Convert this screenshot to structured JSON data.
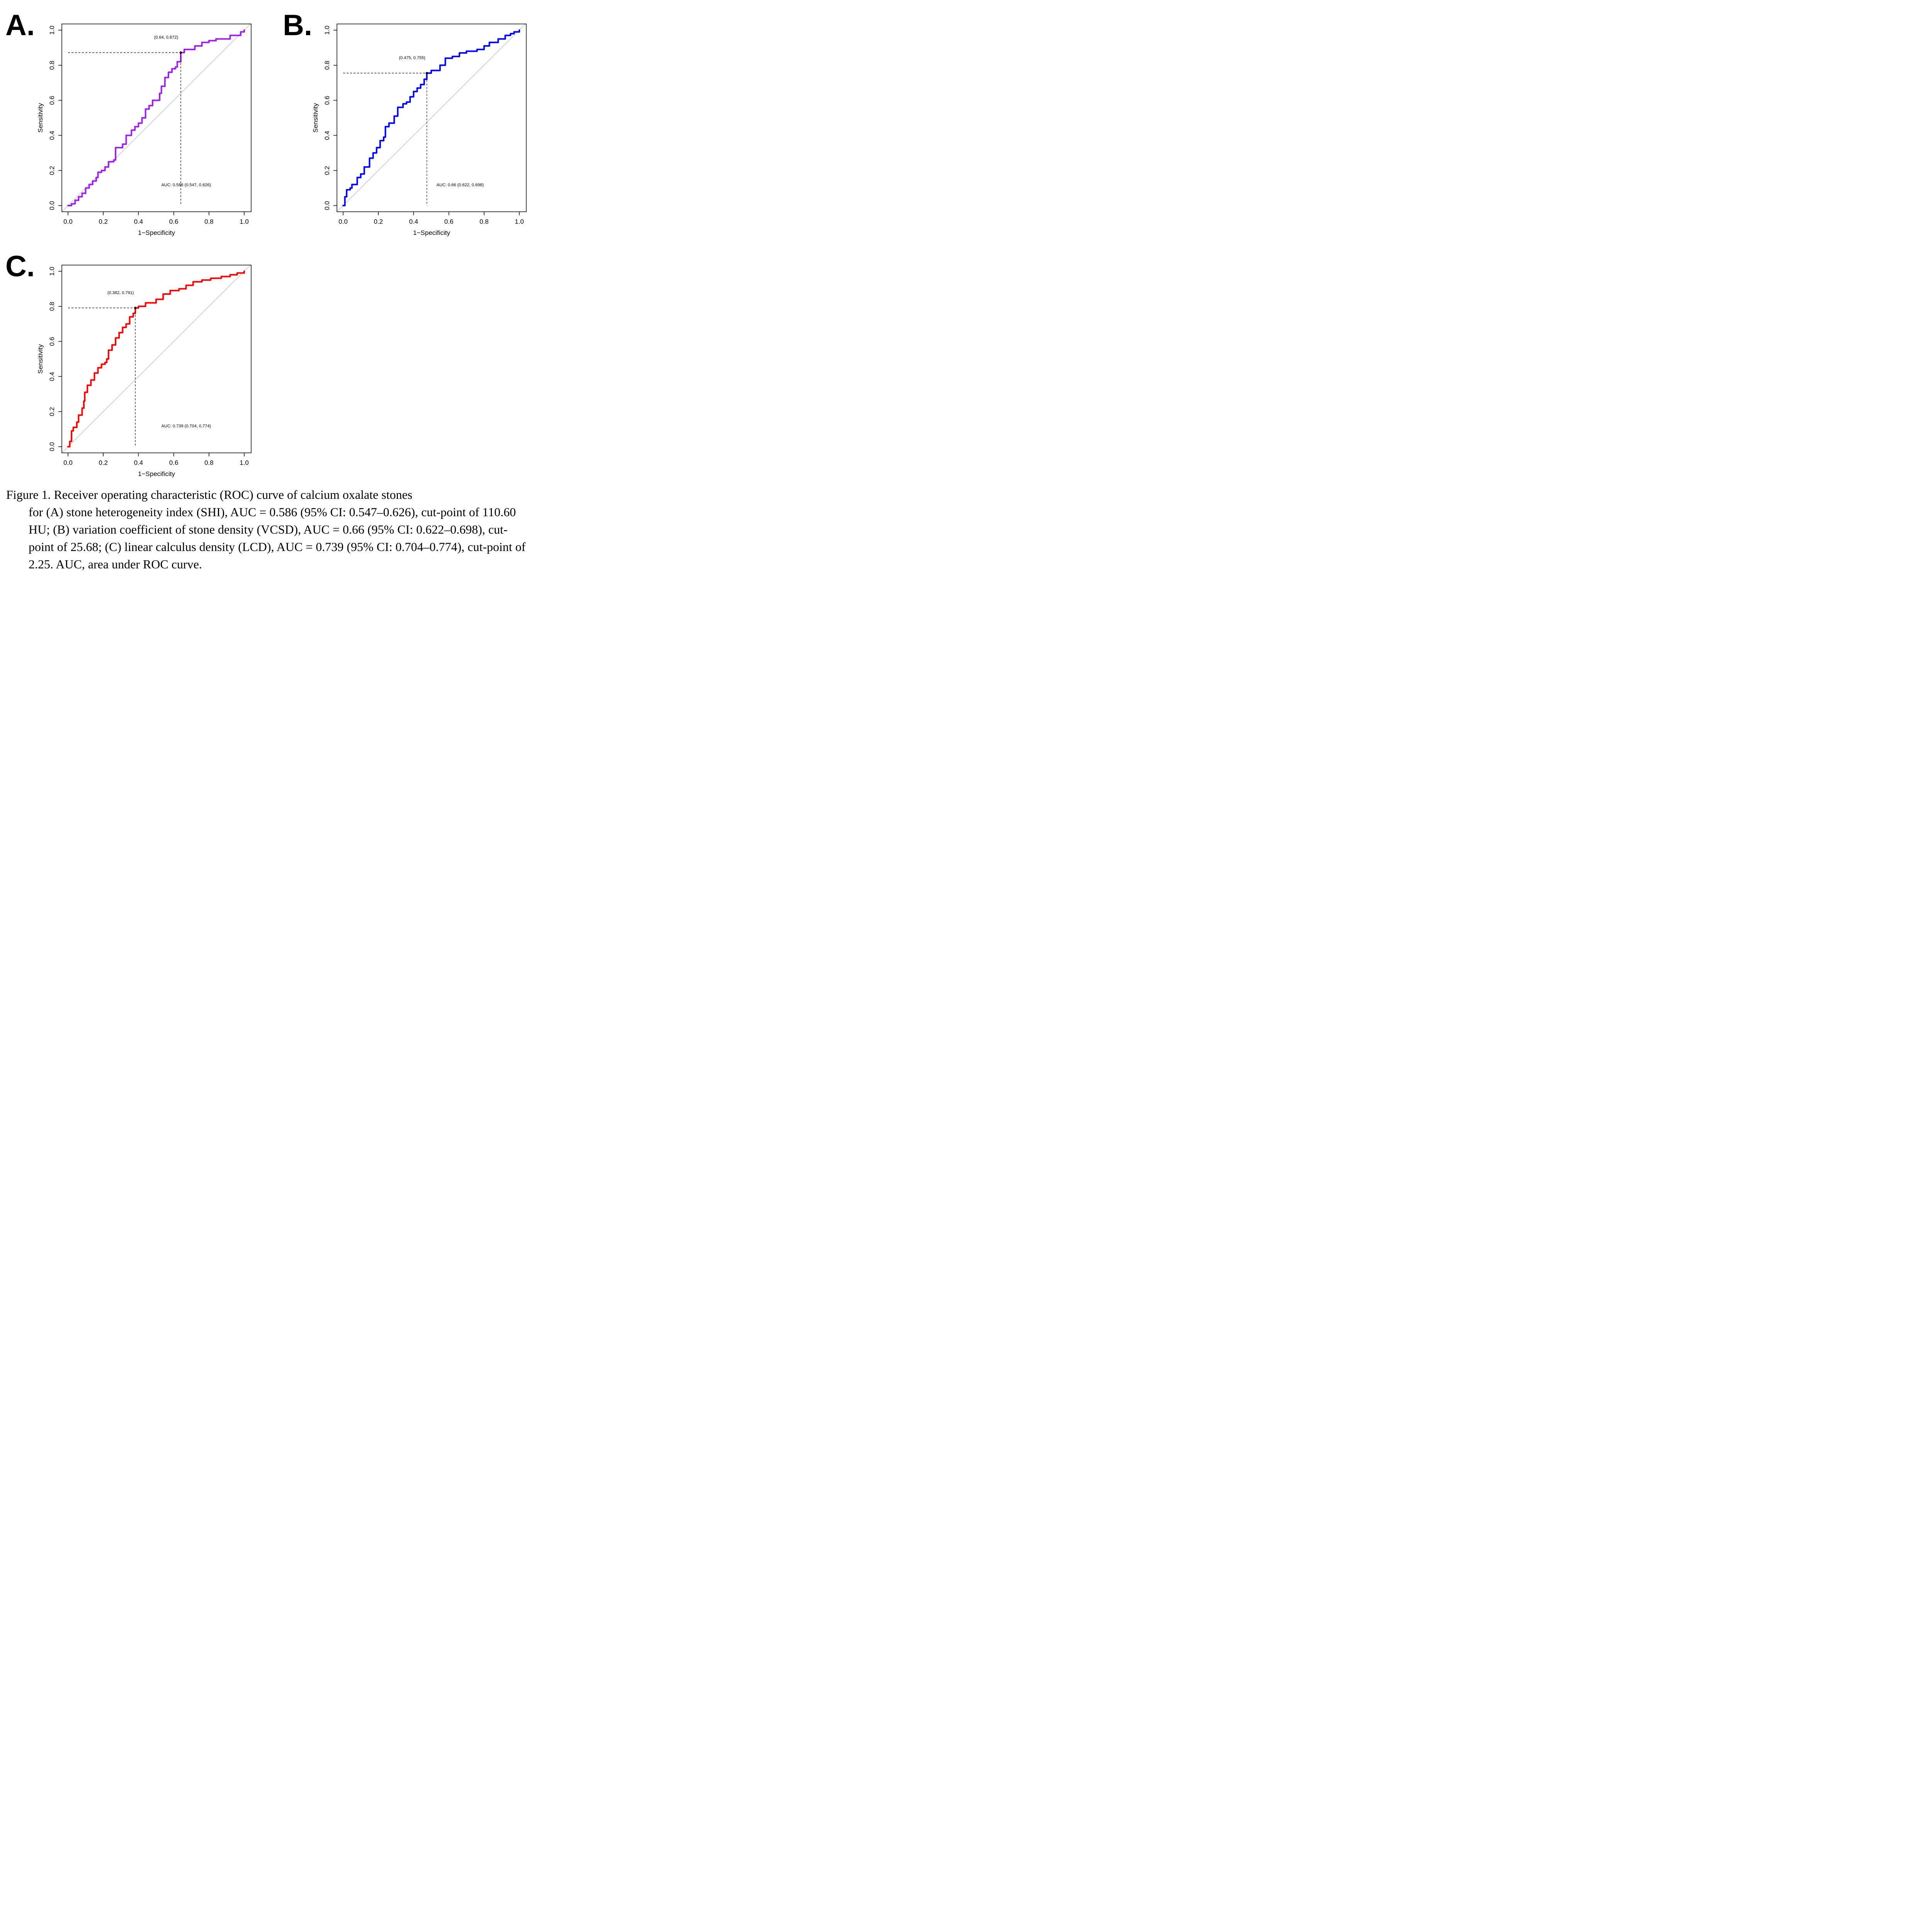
{
  "chart_data": [
    {
      "type": "line",
      "panel_label": "A.",
      "title": "",
      "xlabel": "1−Specificity",
      "ylabel": "Sensitivity",
      "xlim": [
        0,
        1
      ],
      "ylim": [
        0,
        1
      ],
      "xticks": [
        "0.0",
        "0.2",
        "0.4",
        "0.6",
        "0.8",
        "1.0"
      ],
      "yticks": [
        "0.0",
        "0.2",
        "0.4",
        "0.6",
        "0.8",
        "1.0"
      ],
      "curve_color": "#a020f0",
      "reference_line_color": "#bebebe",
      "cutpoint": {
        "x": 0.64,
        "y": 0.872,
        "label": "(0.64, 0.872)"
      },
      "auc_label": "AUC: 0.586 (0.547, 0.626)",
      "series": [
        {
          "name": "SHI",
          "x": [
            0.0,
            0.02,
            0.04,
            0.06,
            0.08,
            0.1,
            0.12,
            0.14,
            0.16,
            0.17,
            0.19,
            0.21,
            0.23,
            0.26,
            0.27,
            0.3,
            0.31,
            0.33,
            0.34,
            0.36,
            0.38,
            0.4,
            0.42,
            0.44,
            0.46,
            0.48,
            0.49,
            0.52,
            0.53,
            0.55,
            0.57,
            0.59,
            0.61,
            0.62,
            0.64,
            0.66,
            0.7,
            0.72,
            0.76,
            0.8,
            0.84,
            0.89,
            0.92,
            0.95,
            0.98,
            1.0
          ],
          "y": [
            0.0,
            0.01,
            0.03,
            0.05,
            0.07,
            0.1,
            0.12,
            0.14,
            0.16,
            0.19,
            0.2,
            0.22,
            0.25,
            0.26,
            0.33,
            0.33,
            0.35,
            0.4,
            0.4,
            0.43,
            0.45,
            0.47,
            0.5,
            0.55,
            0.57,
            0.6,
            0.6,
            0.64,
            0.68,
            0.73,
            0.76,
            0.78,
            0.79,
            0.82,
            0.872,
            0.89,
            0.89,
            0.91,
            0.93,
            0.94,
            0.95,
            0.95,
            0.97,
            0.97,
            0.99,
            1.0
          ]
        }
      ]
    },
    {
      "type": "line",
      "panel_label": "B.",
      "title": "",
      "xlabel": "1−Specificity",
      "ylabel": "Sensitivity",
      "xlim": [
        0,
        1
      ],
      "ylim": [
        0,
        1
      ],
      "xticks": [
        "0.0",
        "0.2",
        "0.4",
        "0.6",
        "0.8",
        "1.0"
      ],
      "yticks": [
        "0.0",
        "0.2",
        "0.4",
        "0.6",
        "0.8",
        "1.0"
      ],
      "curve_color": "#0000ff",
      "reference_line_color": "#bebebe",
      "cutpoint": {
        "x": 0.475,
        "y": 0.755,
        "label": "(0.475, 0.755)"
      },
      "auc_label": "AUC: 0.66 (0.622, 0.698)",
      "series": [
        {
          "name": "VCSD",
          "x": [
            0.0,
            0.01,
            0.02,
            0.04,
            0.05,
            0.08,
            0.1,
            0.12,
            0.15,
            0.17,
            0.19,
            0.21,
            0.23,
            0.24,
            0.26,
            0.29,
            0.31,
            0.34,
            0.36,
            0.38,
            0.4,
            0.42,
            0.44,
            0.46,
            0.475,
            0.5,
            0.55,
            0.58,
            0.62,
            0.66,
            0.7,
            0.76,
            0.8,
            0.83,
            0.88,
            0.92,
            0.95,
            0.97,
            1.0
          ],
          "y": [
            0.0,
            0.05,
            0.09,
            0.1,
            0.12,
            0.16,
            0.18,
            0.22,
            0.27,
            0.3,
            0.33,
            0.37,
            0.39,
            0.45,
            0.47,
            0.51,
            0.56,
            0.58,
            0.59,
            0.62,
            0.65,
            0.67,
            0.69,
            0.72,
            0.755,
            0.77,
            0.8,
            0.84,
            0.85,
            0.87,
            0.88,
            0.89,
            0.91,
            0.93,
            0.95,
            0.97,
            0.98,
            0.99,
            1.0
          ]
        }
      ]
    },
    {
      "type": "line",
      "panel_label": "C.",
      "title": "",
      "xlabel": "1−Specificity",
      "ylabel": "Sensitivity",
      "xlim": [
        0,
        1
      ],
      "ylim": [
        0,
        1
      ],
      "xticks": [
        "0.0",
        "0.2",
        "0.4",
        "0.6",
        "0.8",
        "1.0"
      ],
      "yticks": [
        "0.0",
        "0.2",
        "0.4",
        "0.6",
        "0.8",
        "1.0"
      ],
      "curve_color": "#ff0000",
      "reference_line_color": "#bebebe",
      "cutpoint": {
        "x": 0.382,
        "y": 0.791,
        "label": "(0.382, 0.791)"
      },
      "auc_label": "AUC: 0.739 (0.704, 0.774)",
      "series": [
        {
          "name": "LCD",
          "x": [
            0.0,
            0.01,
            0.02,
            0.03,
            0.05,
            0.06,
            0.08,
            0.09,
            0.095,
            0.11,
            0.13,
            0.15,
            0.17,
            0.19,
            0.21,
            0.22,
            0.23,
            0.25,
            0.27,
            0.29,
            0.31,
            0.33,
            0.35,
            0.37,
            0.382,
            0.4,
            0.44,
            0.5,
            0.54,
            0.58,
            0.63,
            0.67,
            0.71,
            0.76,
            0.81,
            0.87,
            0.92,
            0.96,
            1.0
          ],
          "y": [
            0.0,
            0.03,
            0.09,
            0.11,
            0.14,
            0.18,
            0.22,
            0.26,
            0.31,
            0.35,
            0.38,
            0.42,
            0.45,
            0.47,
            0.48,
            0.5,
            0.55,
            0.58,
            0.62,
            0.65,
            0.68,
            0.7,
            0.74,
            0.76,
            0.791,
            0.8,
            0.82,
            0.84,
            0.87,
            0.89,
            0.9,
            0.92,
            0.94,
            0.95,
            0.96,
            0.97,
            0.98,
            0.99,
            1.0
          ]
        }
      ]
    }
  ],
  "caption": {
    "first_line": "Figure 1. Receiver operating characteristic (ROC) curve of calcium oxalate stones",
    "rest": "for (A) stone heterogeneity index (SHI), AUC = 0.586 (95% CI: 0.547–0.626), cut-point of 110.60 HU; (B) variation coefficient of stone density (VCSD), AUC = 0.66 (95% CI: 0.622–0.698), cut-point of 25.68; (C) linear calculus density (LCD), AUC = 0.739 (95% CI: 0.704–0.774), cut-point of 2.25. AUC, area under ROC curve."
  }
}
